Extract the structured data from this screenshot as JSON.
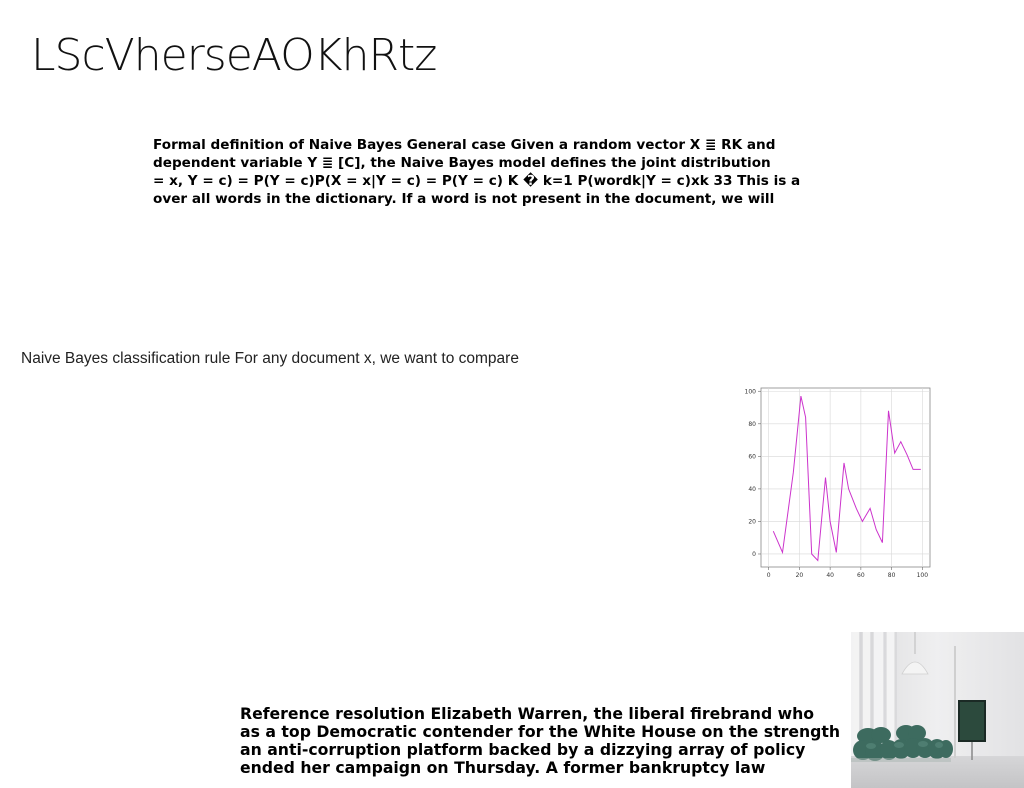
{
  "title": "LScVherseAOKhRtz",
  "bayes_paragraph": {
    "lines": [
      "Formal definition of Naive Bayes General case Given a random vector X ≣ RK and",
      "dependent variable Y ≣ [C], the Naive Bayes model defines the joint distribution",
      "= x, Y = c) = P(Y = c)P(X = x|Y = c) = P(Y = c) K � k=1 P(wordk|Y = c)xk 33 This is a",
      "over all words in the dictionary. If a word is not present in the document, we will"
    ]
  },
  "caption": "Naive Bayes classification rule For any document x, we want to compare",
  "reference_paragraph": {
    "lines": [
      "Reference resolution Elizabeth Warren, the liberal firebrand who",
      "as a top Democratic contender for the White House on the strength",
      "an anti-corruption platform backed by a dizzying array of policy",
      "ended her campaign on Thursday. A former bankruptcy law"
    ]
  },
  "chart_data": {
    "type": "line",
    "x": [
      3,
      9,
      16,
      21,
      24,
      28,
      32,
      37,
      40,
      44,
      49,
      52,
      57,
      61,
      66,
      70,
      74,
      78,
      82,
      86,
      90,
      94,
      99
    ],
    "y": [
      14,
      1,
      50,
      97,
      84,
      0,
      -4,
      47,
      20,
      1,
      56,
      40,
      28,
      20,
      28,
      15,
      7,
      88,
      62,
      69,
      61,
      52,
      52
    ],
    "xlim": [
      -5,
      105
    ],
    "ylim": [
      -8,
      102
    ],
    "xticks": [
      0,
      20,
      40,
      60,
      80,
      100
    ],
    "yticks": [
      0,
      20,
      40,
      60,
      80,
      100
    ],
    "grid": true,
    "line_color": "#cc33cc"
  },
  "photo": {
    "icon": "living-room-photo",
    "colors": {
      "wall": "#ebebec",
      "sofa": "#3f6f63",
      "tv": "#1a2a24"
    }
  }
}
